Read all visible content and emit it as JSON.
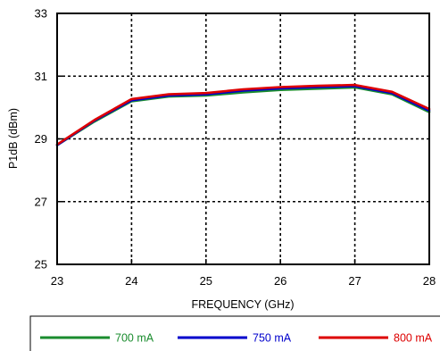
{
  "chart_data": {
    "type": "line",
    "xlabel": "FREQUENCY (GHz)",
    "ylabel": "P1dB (dBm)",
    "xlim": [
      23,
      28
    ],
    "ylim": [
      25,
      33
    ],
    "xticks": [
      "23",
      "24",
      "25",
      "26",
      "27",
      "28"
    ],
    "yticks": [
      "25",
      "27",
      "29",
      "31",
      "33"
    ],
    "grid": true,
    "grid_style": "dotted",
    "legend_position": "bottom",
    "x": [
      23,
      23.5,
      24,
      24.5,
      25,
      25.5,
      26,
      26.5,
      27,
      27.5,
      28
    ],
    "series": [
      {
        "name": "700 mA",
        "color": "#1a8c2e",
        "values": [
          28.8,
          29.55,
          30.2,
          30.35,
          30.38,
          30.48,
          30.56,
          30.6,
          30.64,
          30.42,
          29.85
        ]
      },
      {
        "name": "750 mA",
        "color": "#0000cc",
        "values": [
          28.8,
          29.58,
          30.23,
          30.38,
          30.42,
          30.54,
          30.61,
          30.65,
          30.68,
          30.46,
          29.9
        ]
      },
      {
        "name": "800 mA",
        "color": "#dd0000",
        "values": [
          28.82,
          29.6,
          30.27,
          30.42,
          30.46,
          30.58,
          30.65,
          30.69,
          30.72,
          30.5,
          29.95
        ]
      }
    ]
  }
}
